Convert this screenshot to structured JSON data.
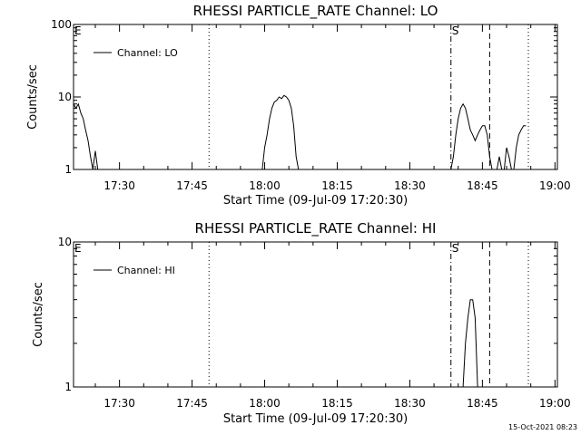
{
  "footer": {
    "timestamp": "15-Oct-2021 08:23"
  },
  "chart_data": [
    {
      "type": "line",
      "title": "RHESSI PARTICLE_RATE Channel: LO",
      "xlabel": "Start Time (09-Jul-09 17:20:30)",
      "ylabel": "Counts/sec",
      "y_scale": "log",
      "ylim": [
        1,
        100
      ],
      "y_ticks": [
        1,
        10,
        100
      ],
      "y_tick_labels": [
        "1",
        "10",
        "100"
      ],
      "xlim": [
        0.5,
        100.5
      ],
      "x_ticks": [
        10,
        25,
        40,
        55,
        70,
        85,
        100
      ],
      "x_tick_labels": [
        "17:30",
        "17:45",
        "18:00",
        "18:15",
        "18:30",
        "18:45",
        "19:00"
      ],
      "x_tick_units": "minutes after 17:20",
      "markers": [
        {
          "label": "E",
          "x": 0.5,
          "style": "none"
        },
        {
          "label": "",
          "x": 28.5,
          "style": "dotted"
        },
        {
          "label": "S",
          "x": 78.5,
          "style": "dashdot"
        },
        {
          "label": "",
          "x": 86.5,
          "style": "dashed"
        },
        {
          "label": "",
          "x": 94.5,
          "style": "dotted"
        }
      ],
      "legend": {
        "entries": [
          "Channel: LO"
        ],
        "position": "top-left"
      },
      "grid": false,
      "series": [
        {
          "name": "Channel: LO",
          "segments": [
            [
              [
                0.5,
                8
              ],
              [
                1,
                7
              ],
              [
                1.5,
                8
              ],
              [
                2,
                6
              ],
              [
                2.5,
                5
              ],
              [
                3,
                3.5
              ],
              [
                3.5,
                2.5
              ],
              [
                4,
                1.5
              ],
              [
                4.5,
                1
              ],
              [
                5,
                1.8
              ],
              [
                5.5,
                1
              ]
            ],
            [
              [
                39.5,
                1
              ],
              [
                40,
                2
              ],
              [
                40.5,
                3
              ],
              [
                41,
                5
              ],
              [
                41.5,
                7
              ],
              [
                42,
                8.5
              ],
              [
                42.5,
                9
              ],
              [
                43,
                10
              ],
              [
                43.5,
                9.5
              ],
              [
                44,
                10.5
              ],
              [
                44.5,
                10
              ],
              [
                45,
                9
              ],
              [
                45.5,
                7
              ],
              [
                46,
                4
              ],
              [
                46.5,
                1.5
              ],
              [
                47,
                1
              ]
            ],
            [
              [
                78.5,
                1
              ],
              [
                79,
                1.5
              ],
              [
                79.5,
                3
              ],
              [
                80,
                5
              ],
              [
                80.5,
                7
              ],
              [
                81,
                8
              ],
              [
                81.5,
                7
              ],
              [
                82,
                5
              ],
              [
                82.5,
                3.5
              ],
              [
                83,
                3
              ],
              [
                83.5,
                2.5
              ],
              [
                84,
                3
              ],
              [
                84.5,
                3.5
              ],
              [
                85,
                4
              ],
              [
                85.5,
                4
              ],
              [
                86,
                3
              ],
              [
                86.5,
                1.5
              ],
              [
                87,
                1
              ]
            ],
            [
              [
                88,
                1
              ],
              [
                88.5,
                1.5
              ],
              [
                89,
                1
              ]
            ],
            [
              [
                89.5,
                1
              ],
              [
                90,
                2
              ],
              [
                90.5,
                1.5
              ],
              [
                91,
                1
              ]
            ],
            [
              [
                91.5,
                1
              ],
              [
                92,
                2
              ],
              [
                92.5,
                3
              ],
              [
                93,
                3.5
              ],
              [
                93.5,
                4
              ],
              [
                94,
                4
              ]
            ]
          ]
        }
      ]
    },
    {
      "type": "line",
      "title": "RHESSI PARTICLE_RATE Channel: HI",
      "xlabel": "Start Time (09-Jul-09 17:20:30)",
      "ylabel": "Counts/sec",
      "y_scale": "log",
      "ylim": [
        1,
        10
      ],
      "y_ticks": [
        1,
        10
      ],
      "y_tick_labels": [
        "1",
        "10"
      ],
      "xlim": [
        0.5,
        100.5
      ],
      "x_ticks": [
        10,
        25,
        40,
        55,
        70,
        85,
        100
      ],
      "x_tick_labels": [
        "17:30",
        "17:45",
        "18:00",
        "18:15",
        "18:30",
        "18:45",
        "19:00"
      ],
      "x_tick_units": "minutes after 17:20",
      "markers": [
        {
          "label": "E",
          "x": 0.5,
          "style": "none"
        },
        {
          "label": "",
          "x": 28.5,
          "style": "dotted"
        },
        {
          "label": "S",
          "x": 78.5,
          "style": "dashdot"
        },
        {
          "label": "",
          "x": 86.5,
          "style": "dashed"
        },
        {
          "label": "",
          "x": 94.5,
          "style": "dotted"
        }
      ],
      "legend": {
        "entries": [
          "Channel: HI"
        ],
        "position": "top-left"
      },
      "grid": false,
      "series": [
        {
          "name": "Channel: HI",
          "segments": [
            [
              [
                81,
                1
              ],
              [
                81.5,
                2
              ],
              [
                82,
                3
              ],
              [
                82.5,
                4
              ],
              [
                83,
                4
              ],
              [
                83.5,
                3
              ],
              [
                84,
                1
              ]
            ]
          ]
        }
      ]
    }
  ]
}
